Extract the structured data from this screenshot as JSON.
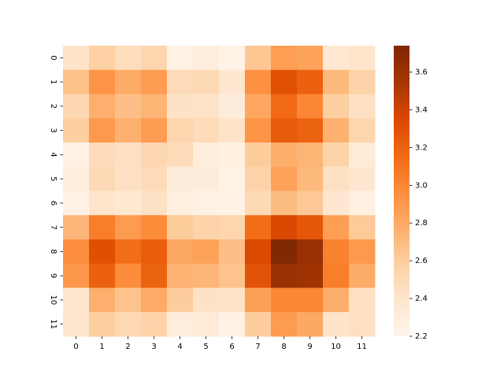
{
  "chart_data": {
    "type": "heatmap",
    "title": "",
    "xlabel": "",
    "ylabel": "",
    "x_labels": [
      "0",
      "1",
      "2",
      "3",
      "4",
      "5",
      "6",
      "7",
      "8",
      "9",
      "10",
      "11"
    ],
    "y_labels": [
      "0",
      "1",
      "2",
      "3",
      "4",
      "5",
      "6",
      "7",
      "8",
      "9",
      "10",
      "11"
    ],
    "values": [
      [
        2.42,
        2.58,
        2.47,
        2.53,
        2.25,
        2.3,
        2.22,
        2.64,
        2.87,
        2.84,
        2.37,
        2.4
      ],
      [
        2.67,
        2.93,
        2.79,
        2.88,
        2.49,
        2.51,
        2.38,
        2.95,
        3.3,
        3.21,
        2.72,
        2.55
      ],
      [
        2.52,
        2.77,
        2.68,
        2.74,
        2.43,
        2.42,
        2.31,
        2.82,
        3.16,
        3.0,
        2.59,
        2.45
      ],
      [
        2.59,
        2.9,
        2.76,
        2.88,
        2.53,
        2.48,
        2.42,
        2.93,
        3.24,
        3.2,
        2.76,
        2.53
      ],
      [
        2.24,
        2.49,
        2.45,
        2.52,
        2.48,
        2.29,
        2.27,
        2.61,
        2.78,
        2.74,
        2.55,
        2.33
      ],
      [
        2.29,
        2.5,
        2.44,
        2.49,
        2.31,
        2.31,
        2.23,
        2.55,
        2.84,
        2.72,
        2.44,
        2.38
      ],
      [
        2.24,
        2.4,
        2.36,
        2.43,
        2.28,
        2.24,
        2.24,
        2.5,
        2.7,
        2.63,
        2.38,
        2.26
      ],
      [
        2.73,
        3.05,
        2.89,
        2.98,
        2.61,
        2.55,
        2.53,
        3.14,
        3.36,
        3.27,
        2.87,
        2.62
      ],
      [
        2.96,
        3.31,
        3.14,
        3.23,
        2.81,
        2.85,
        2.68,
        3.35,
        3.73,
        3.61,
        3.03,
        2.9
      ],
      [
        2.91,
        3.21,
        2.97,
        3.2,
        2.75,
        2.73,
        2.66,
        3.29,
        3.61,
        3.58,
        3.05,
        2.79
      ],
      [
        2.39,
        2.77,
        2.66,
        2.8,
        2.6,
        2.43,
        2.42,
        2.86,
        3.01,
        3.01,
        2.78,
        2.44
      ],
      [
        2.39,
        2.59,
        2.51,
        2.55,
        2.3,
        2.34,
        2.25,
        2.6,
        2.89,
        2.81,
        2.41,
        2.45
      ]
    ],
    "colormap": [
      "#fff5eb",
      "#fee6ce",
      "#fdd0a2",
      "#fdae6b",
      "#fd8d3c",
      "#f16913",
      "#d94801",
      "#a63603",
      "#7f2704"
    ],
    "vmin": 2.2,
    "vmax": 3.74,
    "colorbar_ticks": [
      "2.2",
      "2.4",
      "2.6",
      "2.8",
      "3.0",
      "3.2",
      "3.4",
      "3.6"
    ]
  }
}
